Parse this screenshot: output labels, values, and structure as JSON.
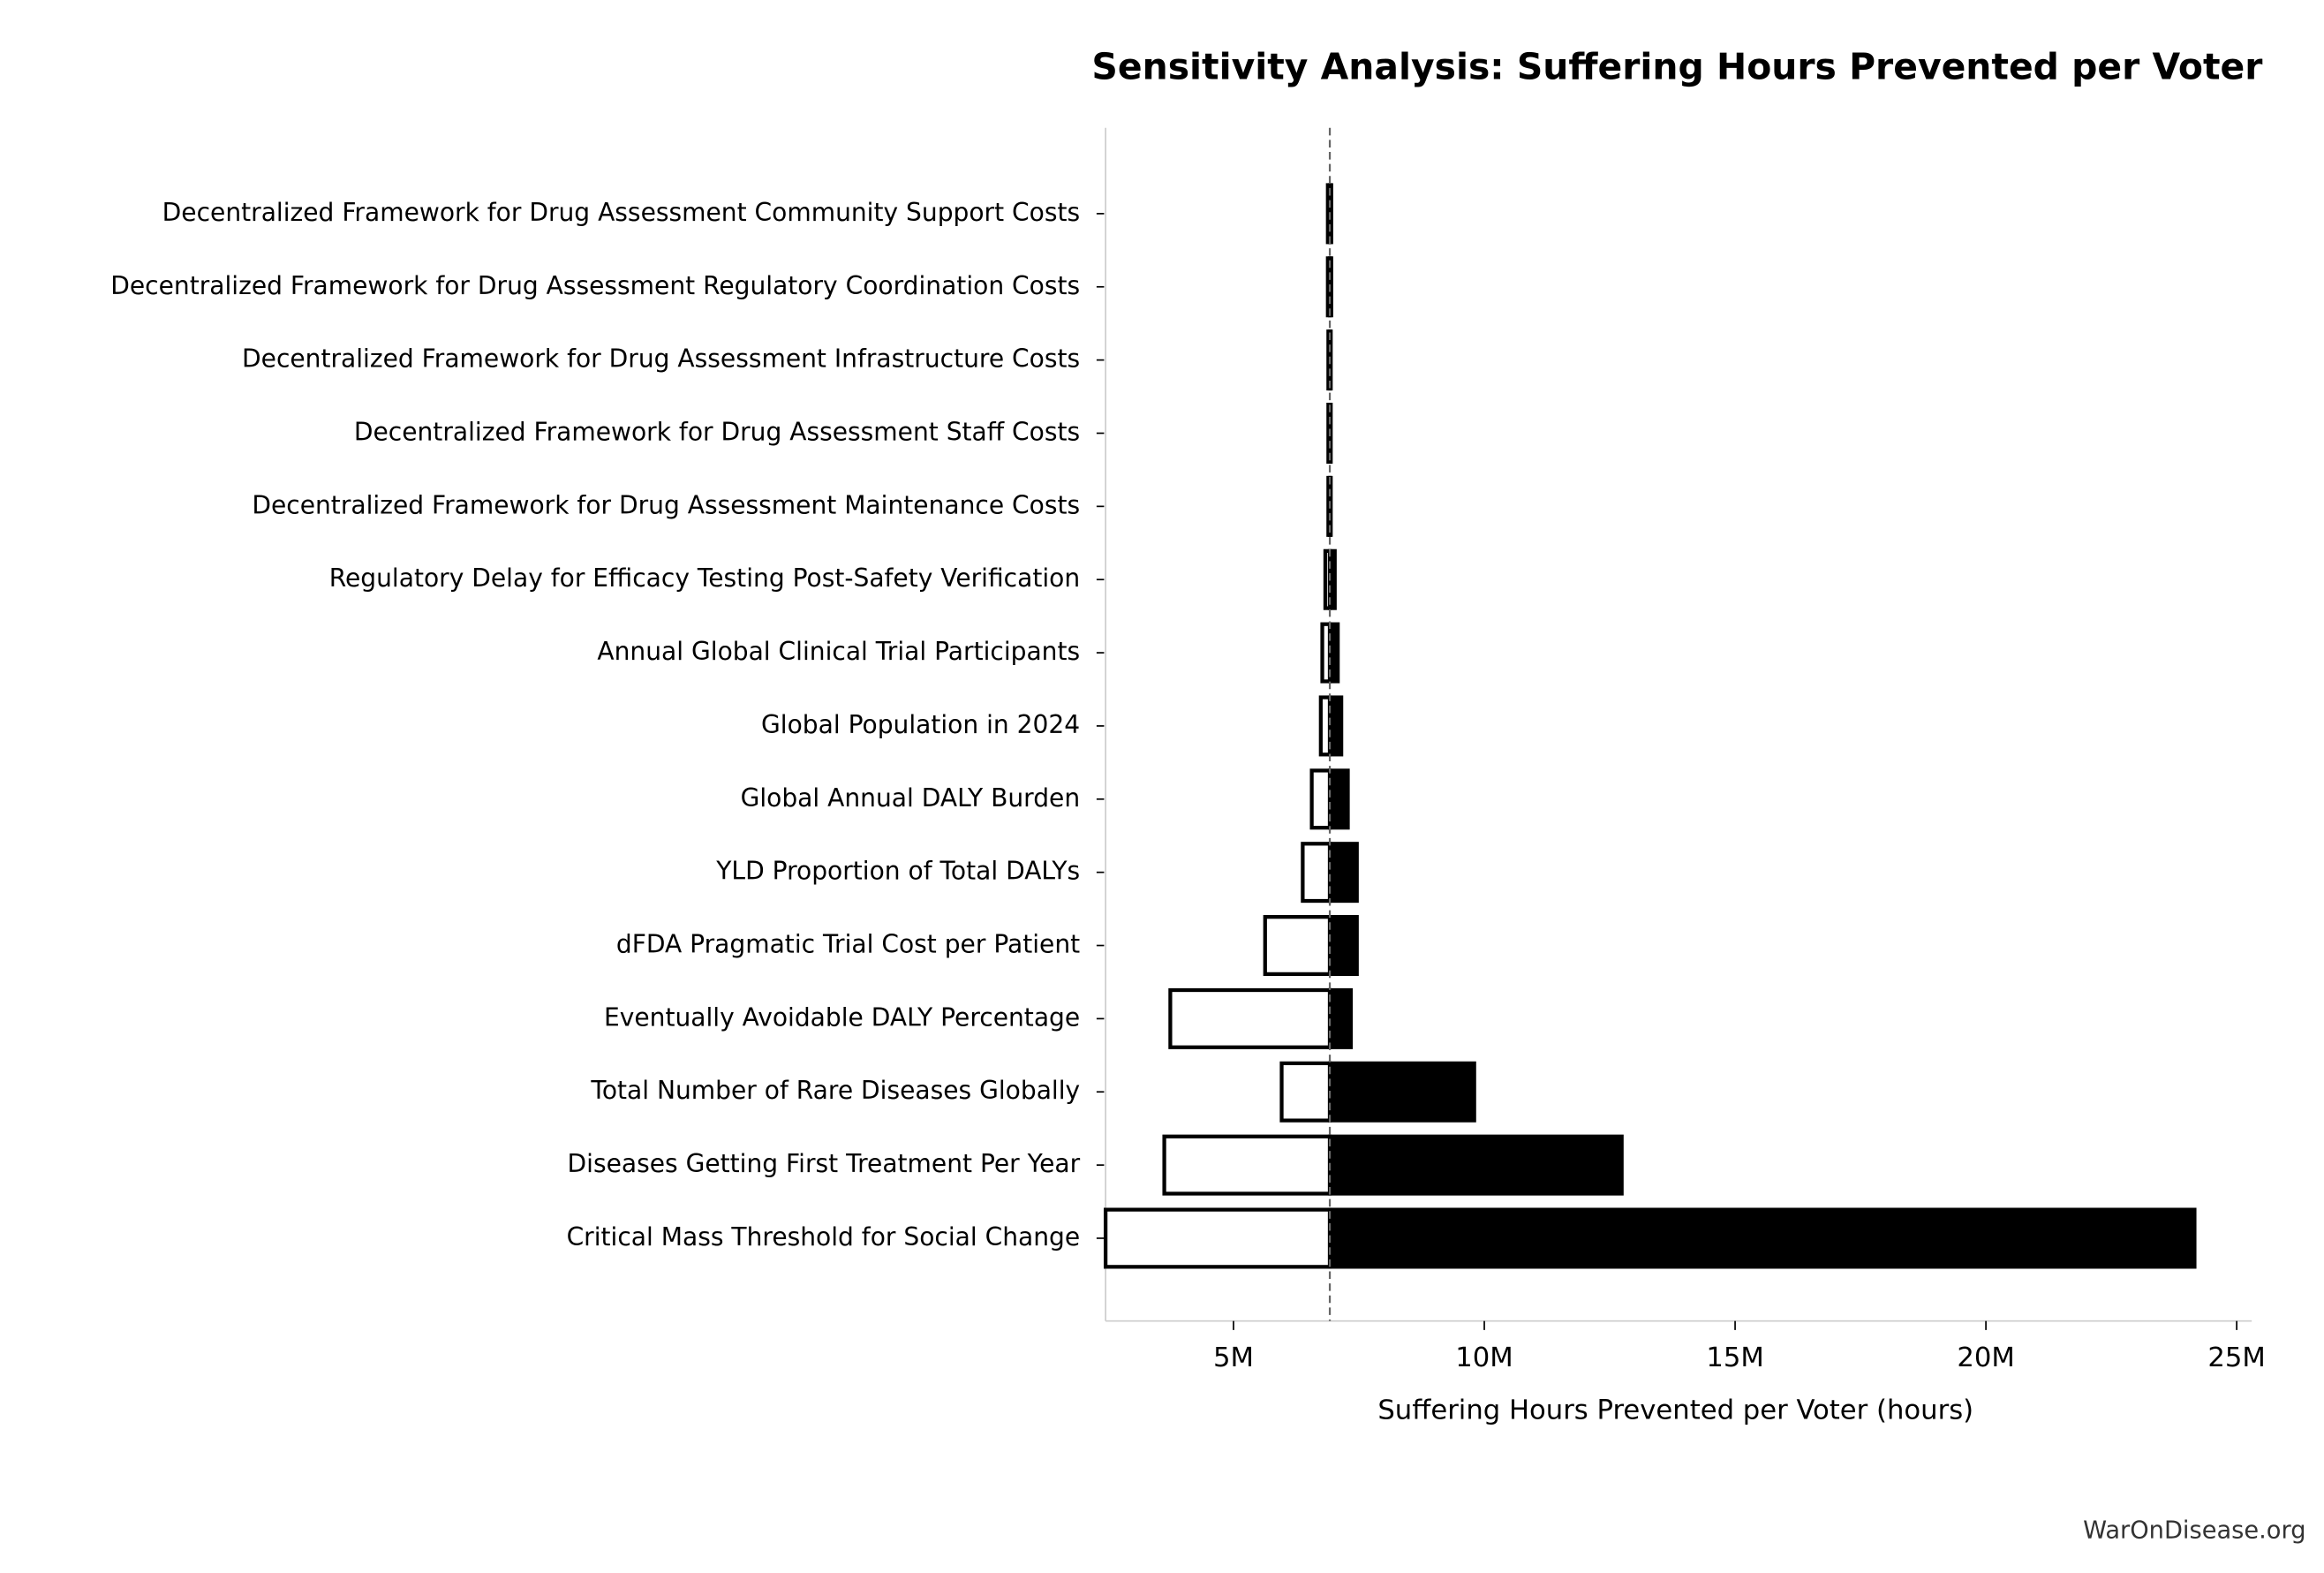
{
  "chart_data": {
    "type": "tornado",
    "title": "Sensitivity Analysis: Suffering Hours Prevented per Voter",
    "x_label": "Suffering Hours Prevented per Voter (hours)",
    "footer": "WarOnDisease.org",
    "categories": [
      "Decentralized Framework for Drug Assessment Community Support Costs",
      "Decentralized Framework for Drug Assessment Regulatory Coordination Costs",
      "Decentralized Framework for Drug Assessment Infrastructure Costs",
      "Decentralized Framework for Drug Assessment Staff Costs",
      "Decentralized Framework for Drug Assessment Maintenance Costs",
      "Regulatory Delay for Efficacy Testing Post-Safety Verification",
      "Annual Global Clinical Trial Participants",
      "Global Population in 2024",
      "Global Annual DALY Burden",
      "YLD Proportion of Total DALYs",
      "dFDA Pragmatic Trial Cost per Patient",
      "Eventually Avoidable DALY Percentage",
      "Total Number of Rare Diseases Globally",
      "Diseases Getting First Treatment Per Year",
      "Critical Mass Threshold for Social Change"
    ],
    "baseline": 6920000,
    "low": [
      6880000,
      6880000,
      6890000,
      6890000,
      6890000,
      6830000,
      6770000,
      6740000,
      6560000,
      6380000,
      5630000,
      3740000,
      5960000,
      3620000,
      2450000
    ],
    "high": [
      6950000,
      6950000,
      6940000,
      6940000,
      6940000,
      7020000,
      7080000,
      7150000,
      7280000,
      7460000,
      7460000,
      7340000,
      9800000,
      12740000,
      24160000
    ],
    "low_color": "#ffffff",
    "high_color": "#000000",
    "xlim": [
      2450000,
      25300000
    ],
    "xticks": [
      {
        "value": 5000000,
        "label": "5M"
      },
      {
        "value": 10000000,
        "label": "10M"
      },
      {
        "value": 15000000,
        "label": "15M"
      },
      {
        "value": 20000000,
        "label": "20M"
      },
      {
        "value": 25000000,
        "label": "25M"
      }
    ]
  }
}
